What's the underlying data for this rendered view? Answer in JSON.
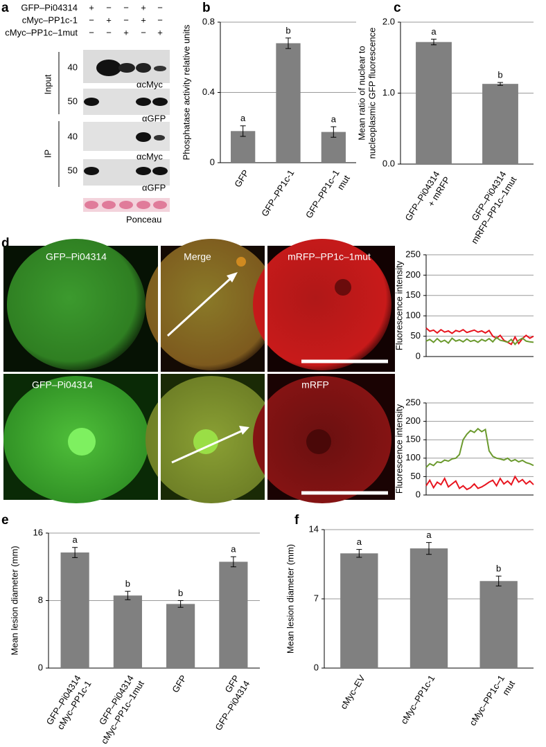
{
  "panel_labels": [
    "a",
    "b",
    "c",
    "d",
    "e",
    "f"
  ],
  "blot": {
    "rows": [
      {
        "label": "GFP–Pi04314",
        "marks": [
          "+",
          "−",
          "−",
          "+",
          "−"
        ]
      },
      {
        "label": "cMyc–PP1c-1",
        "marks": [
          "−",
          "+",
          "−",
          "+",
          "−"
        ]
      },
      {
        "label": "cMyc–PP1c–1mut",
        "marks": [
          "−",
          "−",
          "+",
          "−",
          "+"
        ]
      }
    ],
    "sections": [
      "Input",
      "IP"
    ],
    "mw": [
      "40",
      "50",
      "40",
      "50"
    ],
    "antibodies": [
      "αcMyc",
      "αGFP",
      "αcMyc",
      "αGFP"
    ],
    "stain": "Ponceau"
  },
  "micrographs": {
    "labels": [
      "GFP–Pi04314",
      "Merge",
      "mRFP–PP1c–1mut",
      "GFP–Pi04314",
      "mRFP"
    ]
  },
  "chart_data": [
    {
      "type": "bar",
      "ylabel": [
        "Phosphatase  activity relative units"
      ],
      "categories": [
        [
          "GFP"
        ],
        [
          "GFP–PP1c-1"
        ],
        [
          "GFP–PP1c–1",
          "mut"
        ]
      ],
      "values": [
        0.18,
        0.68,
        0.175
      ],
      "errors": [
        0.03,
        0.03,
        0.03
      ],
      "annotations": [
        "a",
        "b",
        "a"
      ],
      "color": "#808080",
      "ylim": [
        0,
        0.8
      ],
      "yticks": [
        0,
        0.4,
        0.8
      ],
      "grid": true
    },
    {
      "type": "bar",
      "ylabel": [
        "Mean ratio of nuclear to",
        "nucleoplasmic GFP fluorescence"
      ],
      "categories": [
        [
          "GFP–Pi04314",
          "+ mRFP"
        ],
        [
          "GFP–Pi04314",
          "mRFP–PP1c–1mut"
        ]
      ],
      "values": [
        1.72,
        1.13
      ],
      "errors": [
        0.04,
        0.02
      ],
      "annotations": [
        "a",
        "b"
      ],
      "color": "#808080",
      "ylim": [
        0,
        2
      ],
      "yticks": [
        {
          "value": 0,
          "label": "0.0"
        },
        {
          "value": 1,
          "label": "1.0"
        },
        {
          "value": 2,
          "label": "2.0"
        }
      ],
      "grid": true
    },
    {
      "type": "line",
      "ylabel": [
        "Fluorescence intensity"
      ],
      "ylim": [
        0,
        250
      ],
      "yticks": [
        0,
        50,
        100,
        150,
        200,
        250
      ],
      "grid": true,
      "series": [
        {
          "color": "#e8141e",
          "values": [
            70,
            62,
            65,
            58,
            66,
            60,
            63,
            57,
            64,
            61,
            66,
            59,
            62,
            65,
            60,
            63,
            58,
            64,
            50,
            45,
            52,
            40,
            35,
            30,
            48,
            32,
            44,
            52,
            45,
            50
          ]
        },
        {
          "color": "#6b9a2e",
          "values": [
            38,
            42,
            35,
            44,
            36,
            40,
            33,
            45,
            38,
            41,
            36,
            43,
            37,
            40,
            35,
            42,
            38,
            44,
            36,
            47,
            40,
            38,
            35,
            42,
            30,
            40,
            45,
            38,
            36,
            35
          ]
        }
      ]
    },
    {
      "type": "line",
      "ylabel": [
        "Fluorescence intensity"
      ],
      "ylim": [
        0,
        250
      ],
      "yticks": [
        0,
        50,
        100,
        150,
        200,
        250
      ],
      "grid": true,
      "series": [
        {
          "color": "#6b9a2e",
          "values": [
            75,
            85,
            80,
            90,
            88,
            95,
            92,
            98,
            100,
            110,
            150,
            165,
            175,
            170,
            180,
            172,
            178,
            120,
            105,
            100,
            98,
            95,
            100,
            92,
            96,
            90,
            94,
            88,
            85,
            80
          ]
        },
        {
          "color": "#e8141e",
          "values": [
            25,
            40,
            20,
            35,
            28,
            45,
            22,
            30,
            38,
            18,
            25,
            15,
            20,
            30,
            18,
            22,
            28,
            35,
            40,
            25,
            45,
            30,
            38,
            28,
            50,
            35,
            42,
            30,
            38,
            28
          ]
        }
      ]
    },
    {
      "type": "bar",
      "ylabel": [
        "Mean lesion diameter (mm)"
      ],
      "categories": [
        [
          "GFP–Pi04314",
          "cMyc–PP1c-1"
        ],
        [
          "GFP–Pi04314",
          "cMyc–PP1c–1mut"
        ],
        [
          "GFP"
        ],
        [
          "GFP",
          "GFP–Pi04314"
        ]
      ],
      "values": [
        13.7,
        8.6,
        7.6,
        12.6
      ],
      "errors": [
        0.6,
        0.5,
        0.4,
        0.6
      ],
      "annotations": [
        "a",
        "b",
        "b",
        "a"
      ],
      "color": "#808080",
      "ylim": [
        0,
        16
      ],
      "yticks": [
        0,
        8,
        16
      ],
      "grid": true
    },
    {
      "type": "bar",
      "ylabel": [
        "Mean lesion diameter (mm)"
      ],
      "categories": [
        [
          "cMyc–EV"
        ],
        [
          "cMyc–PP1c-1"
        ],
        [
          "cMyc–PP1c–1",
          "mut"
        ]
      ],
      "values": [
        11.6,
        12.1,
        8.8
      ],
      "errors": [
        0.4,
        0.6,
        0.5
      ],
      "annotations": [
        "a",
        "a",
        "b"
      ],
      "color": "#808080",
      "ylim": [
        0,
        14
      ],
      "yticks": [
        0,
        7,
        14
      ],
      "grid": true
    }
  ]
}
